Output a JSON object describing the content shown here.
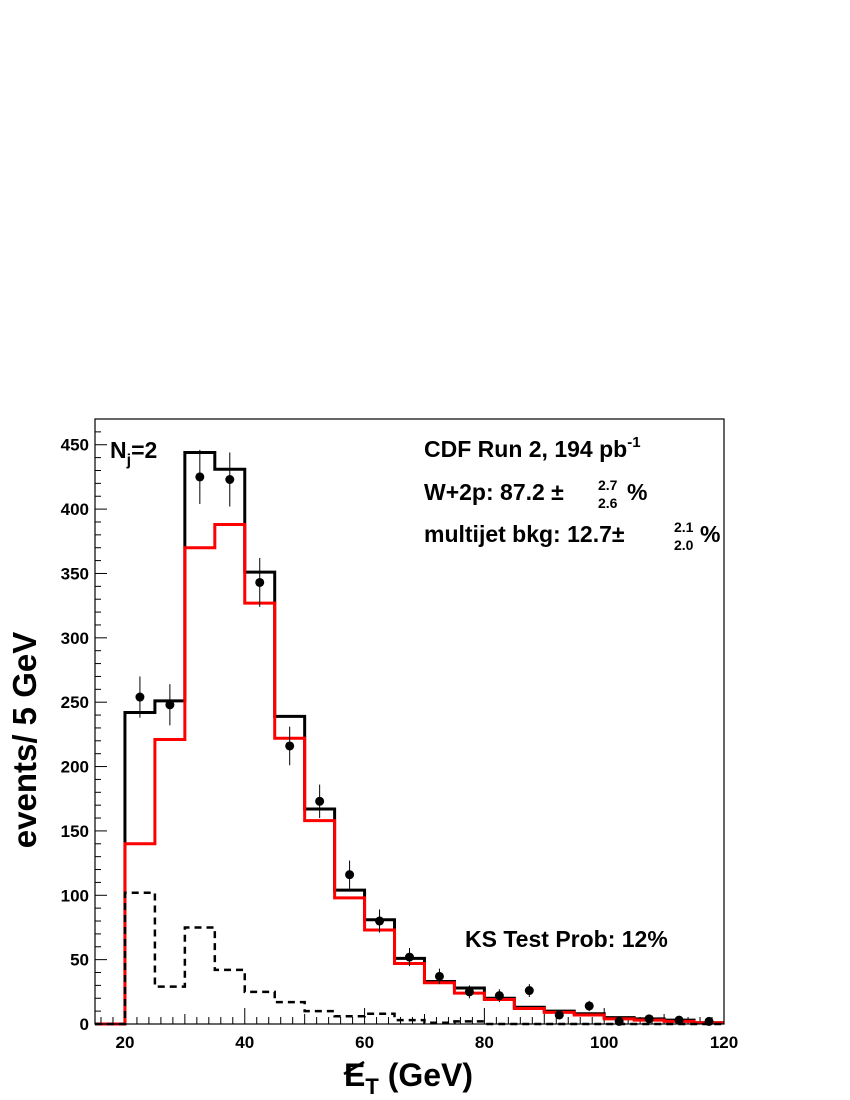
{
  "chart_data": {
    "type": "histogram",
    "xlabel": "E_T (GeV)",
    "xlabel_main": "E",
    "xlabel_sub": "T",
    "xlabel_rest": " (GeV)",
    "ylabel": "events/ 5 GeV",
    "xlim": [
      15,
      120
    ],
    "ylim": [
      0,
      470
    ],
    "x_ticks": [
      20,
      40,
      60,
      80,
      100,
      120
    ],
    "y_ticks": [
      0,
      50,
      100,
      150,
      200,
      250,
      300,
      350,
      400,
      450
    ],
    "bin_width": 5,
    "bin_edges_start": 15,
    "series": [
      {
        "style": "solid-black-histogram",
        "color": "#000000",
        "values": [
          0,
          242,
          251,
          444,
          431,
          351,
          239,
          167,
          104,
          81,
          51,
          33,
          28,
          20,
          13,
          10,
          8,
          5,
          4,
          3,
          1
        ]
      },
      {
        "style": "solid-red-histogram",
        "color": "#ff0000",
        "values": [
          0,
          140,
          221,
          370,
          388,
          327,
          222,
          158,
          98,
          73,
          47,
          32,
          24,
          19,
          12,
          9,
          7,
          4,
          3,
          2,
          1
        ]
      },
      {
        "style": "dashed-black-histogram",
        "color": "#000000",
        "values": [
          0,
          102,
          29,
          75,
          42,
          25,
          17,
          10,
          6,
          8,
          3,
          1,
          2,
          0,
          0,
          0,
          0,
          0,
          0,
          0,
          0
        ]
      },
      {
        "style": "data-points",
        "color": "#000000",
        "x": [
          22.5,
          27.5,
          32.5,
          37.5,
          42.5,
          47.5,
          52.5,
          57.5,
          62.5,
          67.5,
          72.5,
          77.5,
          82.5,
          87.5,
          92.5,
          97.5,
          102.5,
          107.5,
          112.5,
          117.5
        ],
        "y": [
          254,
          248,
          425,
          423,
          343,
          216,
          173,
          116,
          80,
          52,
          37,
          25,
          22,
          26,
          7,
          14,
          2,
          4,
          3,
          2
        ],
        "err": [
          16,
          16,
          21,
          21,
          19,
          15,
          13,
          11,
          9,
          7,
          6,
          5,
          5,
          5,
          3,
          4,
          1.4,
          2,
          1.7,
          1.4
        ]
      }
    ],
    "annotations": {
      "nj_main": "N",
      "nj_sub": "j",
      "nj_rest": "=2",
      "run_text": "CDF Run 2, 194 pb",
      "run_sup": "-1",
      "w2p_text": "W+2p: 87.2 ±",
      "w2p_up": "2.7",
      "w2p_down": "2.6",
      "w2p_unit": "%",
      "mj_text": "multijet bkg: 12.7±",
      "mj_up": "2.1",
      "mj_down": "2.0",
      "mj_unit": "%",
      "ks_text": "KS Test Prob: 12%"
    }
  }
}
